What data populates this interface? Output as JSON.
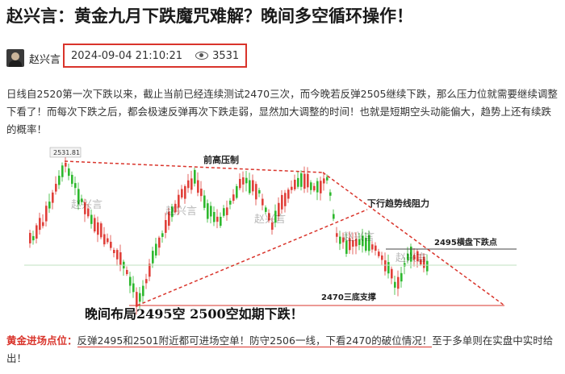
{
  "article": {
    "title": "赵兴言：黄金九月下跌魔咒难解？晚间多空循环操作！",
    "author": "赵兴言",
    "date": "2024-09-04 21:10:21",
    "views": "3531",
    "paragraph": "日线自2520第一次下跌以来，截止当前已经连续测试2470三次，而今晚若反弹2505继续下跌，那么压力位就需要继续调整下看了！而每次下跌之后，都会极速反弹再次下跌走弱，显然加大调整的时间！也就是短期空头动能偏大，趋势上还有续跌的概率！"
  },
  "chart": {
    "peak_label": "2531.81",
    "annotation_resistance": "前高压制",
    "annotation_trendline": "下行趋势线阻力",
    "annotation_breakdown": "2495横盘下跌点",
    "annotation_support": "2470三底支撑",
    "caption": "晚间布局2495空  2500空如期下跌！",
    "watermark": "赵兴言",
    "colors": {
      "up": "#2eb82e",
      "down": "#e0403a",
      "trend": "#d9342b"
    }
  },
  "entry": {
    "label": "黄金进场点位：",
    "text_highlight": "反弹2495和2501附近都可进场空单！防守2506一线，下看2470的破位情况！",
    "text_rest": "至于多单则在实盘中实时给出！"
  }
}
